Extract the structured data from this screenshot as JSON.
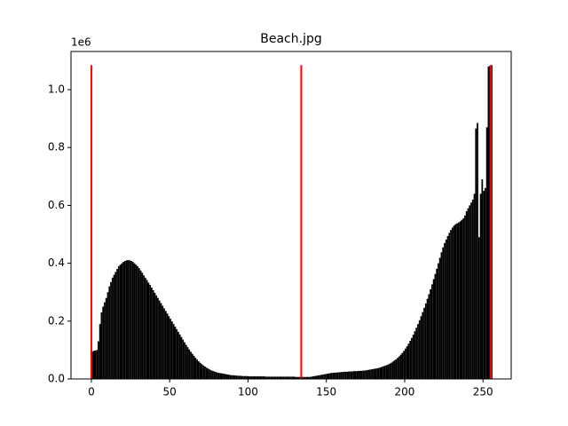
{
  "chart_data": {
    "type": "histogram",
    "title": "Beach.jpg",
    "y_offset_label": "1e6",
    "color": "#000000",
    "bins": [
      0,
      1,
      2,
      3,
      4,
      5,
      6,
      7,
      8,
      9,
      10,
      11,
      12,
      13,
      14,
      15,
      16,
      17,
      18,
      19,
      20,
      21,
      22,
      23,
      24,
      25,
      26,
      27,
      28,
      29,
      30,
      31,
      32,
      33,
      34,
      35,
      36,
      37,
      38,
      39,
      40,
      41,
      42,
      43,
      44,
      45,
      46,
      47,
      48,
      49,
      50,
      51,
      52,
      53,
      54,
      55,
      56,
      57,
      58,
      59,
      60,
      61,
      62,
      63,
      64,
      65,
      66,
      67,
      68,
      69,
      70,
      71,
      72,
      73,
      74,
      75,
      76,
      77,
      78,
      79,
      80,
      81,
      82,
      83,
      84,
      85,
      86,
      87,
      88,
      89,
      90,
      91,
      92,
      93,
      94,
      95,
      96,
      97,
      98,
      99,
      100,
      101,
      102,
      103,
      104,
      105,
      106,
      107,
      108,
      109,
      110,
      111,
      112,
      113,
      114,
      115,
      116,
      117,
      118,
      119,
      120,
      121,
      122,
      123,
      124,
      125,
      126,
      127,
      128,
      129,
      130,
      131,
      132,
      133,
      134,
      135,
      136,
      137,
      138,
      139,
      140,
      141,
      142,
      143,
      144,
      145,
      146,
      147,
      148,
      149,
      150,
      151,
      152,
      153,
      154,
      155,
      156,
      157,
      158,
      159,
      160,
      161,
      162,
      163,
      164,
      165,
      166,
      167,
      168,
      169,
      170,
      171,
      172,
      173,
      174,
      175,
      176,
      177,
      178,
      179,
      180,
      181,
      182,
      183,
      184,
      185,
      186,
      187,
      188,
      189,
      190,
      191,
      192,
      193,
      194,
      195,
      196,
      197,
      198,
      199,
      200,
      201,
      202,
      203,
      204,
      205,
      206,
      207,
      208,
      209,
      210,
      211,
      212,
      213,
      214,
      215,
      216,
      217,
      218,
      219,
      220,
      221,
      222,
      223,
      224,
      225,
      226,
      227,
      228,
      229,
      230,
      231,
      232,
      233,
      234,
      235,
      236,
      237,
      238,
      239,
      240,
      241,
      242,
      243,
      244,
      245,
      246,
      247,
      248,
      249,
      250,
      251,
      252,
      253,
      254,
      255,
      256
    ],
    "values": [
      95000,
      97000,
      98000,
      100000,
      130000,
      190000,
      230000,
      250000,
      265000,
      280000,
      300000,
      320000,
      335000,
      350000,
      360000,
      370000,
      380000,
      390000,
      395000,
      400000,
      405000,
      408000,
      410000,
      411000,
      410000,
      408000,
      405000,
      400000,
      395000,
      390000,
      383000,
      375000,
      367000,
      358000,
      350000,
      342000,
      333000,
      325000,
      316000,
      307000,
      298000,
      289000,
      280000,
      271000,
      262000,
      253000,
      244000,
      235000,
      226000,
      217000,
      208000,
      199000,
      190000,
      181000,
      172000,
      163000,
      154000,
      145000,
      136000,
      127000,
      118000,
      110000,
      102000,
      94000,
      87000,
      80000,
      73000,
      67000,
      61000,
      56000,
      51000,
      47000,
      43000,
      39000,
      36000,
      33000,
      30000,
      28000,
      26000,
      24000,
      22000,
      21000,
      20000,
      19000,
      18000,
      17000,
      16000,
      15000,
      14000,
      13000,
      13000,
      12000,
      12000,
      11000,
      11000,
      11000,
      10000,
      10000,
      10000,
      10000,
      9000,
      9000,
      9000,
      9000,
      9000,
      9000,
      9000,
      9000,
      9000,
      9000,
      9000,
      8000,
      8000,
      8000,
      8000,
      8000,
      8000,
      8000,
      8000,
      8000,
      8000,
      8000,
      8000,
      8000,
      8000,
      8000,
      8000,
      8000,
      8000,
      8000,
      7000,
      7000,
      7000,
      7000,
      7000,
      7000,
      7000,
      7000,
      7000,
      7000,
      8000,
      9000,
      10000,
      11000,
      12000,
      13000,
      14000,
      15000,
      16000,
      17000,
      18000,
      19000,
      20000,
      21000,
      21000,
      22000,
      22000,
      23000,
      23000,
      24000,
      24000,
      25000,
      25000,
      25000,
      26000,
      26000,
      26000,
      27000,
      27000,
      27000,
      28000,
      28000,
      28000,
      29000,
      29000,
      30000,
      31000,
      32000,
      33000,
      34000,
      35000,
      36000,
      37000,
      38000,
      40000,
      42000,
      44000,
      46000,
      48000,
      50000,
      53000,
      56000,
      60000,
      64000,
      68000,
      73000,
      78000,
      84000,
      90000,
      97000,
      105000,
      113000,
      122000,
      132000,
      142000,
      153000,
      165000,
      177000,
      190000,
      203000,
      217000,
      231000,
      246000,
      261000,
      277000,
      293000,
      310000,
      327000,
      345000,
      363000,
      381000,
      400000,
      419000,
      438000,
      455000,
      470000,
      482000,
      494000,
      505000,
      515000,
      523000,
      530000,
      535000,
      538000,
      541000,
      545000,
      550000,
      555000,
      565000,
      580000,
      590000,
      600000,
      610000,
      620000,
      640000,
      866000,
      885000,
      490000,
      640000,
      690000,
      650000,
      660000,
      870000,
      1080000,
      1083000,
      1085000
    ],
    "vlines": {
      "x": [
        0,
        134,
        255
      ],
      "ymax": 1085000,
      "color": "#ff0000"
    },
    "xlim": [
      -13,
      268
    ],
    "xticks": [
      0,
      50,
      100,
      150,
      200,
      250
    ],
    "ylim": [
      0,
      1132000
    ],
    "yticks": [
      {
        "value": 0,
        "label": "0.0"
      },
      {
        "value": 200000,
        "label": "0.2"
      },
      {
        "value": 400000,
        "label": "0.4"
      },
      {
        "value": 600000,
        "label": "0.6"
      },
      {
        "value": 800000,
        "label": "0.8"
      },
      {
        "value": 1000000,
        "label": "1.0"
      }
    ]
  }
}
